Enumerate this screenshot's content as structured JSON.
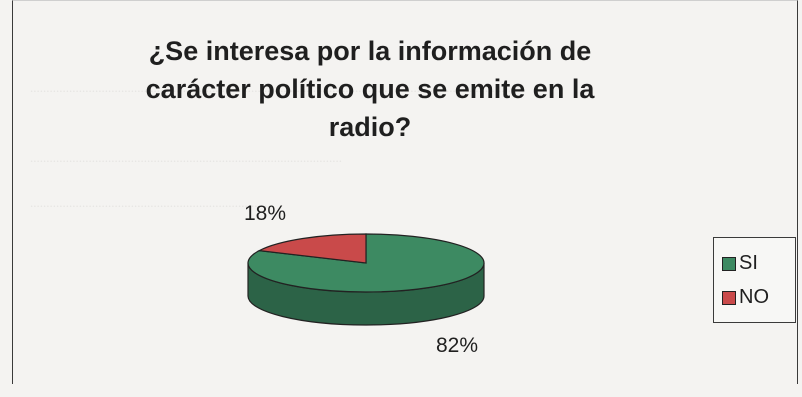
{
  "chart_data": {
    "type": "pie",
    "title": "¿Se interesa por la información de carácter político que se emite en la radio?",
    "slices": [
      {
        "label": "SI",
        "value": 82,
        "display": "82%",
        "color": "#3d8a62"
      },
      {
        "label": "NO",
        "value": 18,
        "display": "18%",
        "color": "#c94a4a"
      }
    ],
    "legend_position": "right",
    "style": "3d"
  }
}
